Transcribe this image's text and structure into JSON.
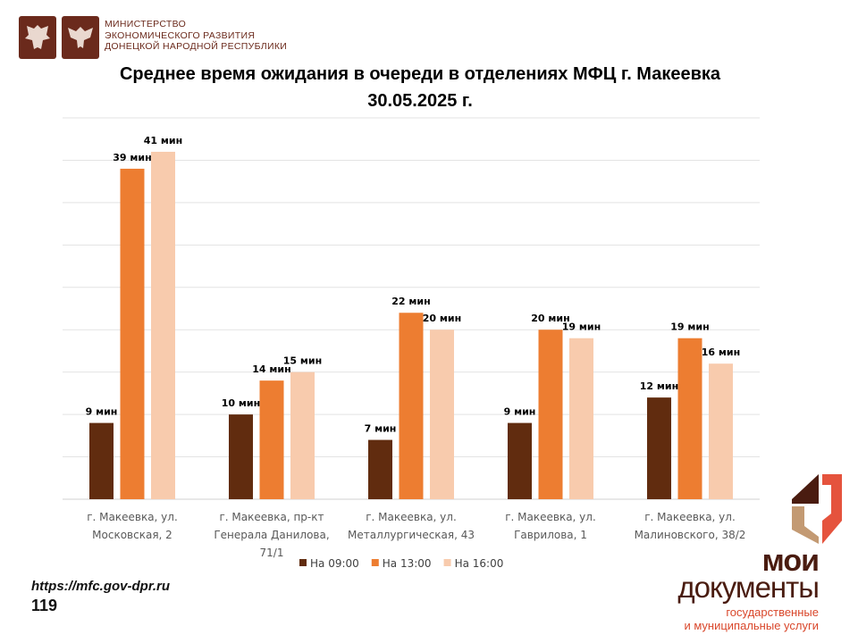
{
  "header": {
    "ministry_lines": [
      "МИНИСТЕРСТВО",
      "ЭКОНОМИЧЕСКОГО РАЗВИТИЯ",
      "ДОНЕЦКОЙ НАРОДНОЙ РЕСПУБЛИКИ"
    ]
  },
  "footer": {
    "url": "https://mfc.gov-dpr.ru",
    "page_number": "119",
    "brand_line1": "мои",
    "brand_line2": "документы",
    "brand_sub1": "государственные",
    "brand_sub2": "и муниципальные услуги"
  },
  "colors": {
    "s0": "#612c0f",
    "s1": "#ed7d31",
    "s2": "#f8cbad",
    "logo_red": "#e5533d",
    "logo_tan": "#c39a73"
  },
  "chart_data": {
    "type": "bar",
    "title": "Среднее время ожидания в очереди в отделениях МФЦ г. Макеевка",
    "subtitle": "30.05.2025 г.",
    "categories": [
      [
        "г. Макеевка, ул.",
        "Московская, 2"
      ],
      [
        "г. Макеевка, пр-кт",
        "Генерала Данилова,",
        "71/1"
      ],
      [
        "г. Макеевка, ул.",
        "Металлургическая, 43"
      ],
      [
        "г. Макеевка, ул.",
        "Гаврилова, 1"
      ],
      [
        "г. Макеевка, ул.",
        "Малиновского, 38/2"
      ]
    ],
    "series": [
      {
        "name": "На 09:00",
        "values": [
          9,
          10,
          7,
          9,
          12
        ],
        "labels": [
          "9 мин",
          "10 мин",
          "7 мин",
          "9 мин",
          "12 мин"
        ]
      },
      {
        "name": "На 13:00",
        "values": [
          39,
          14,
          22,
          20,
          19
        ],
        "labels": [
          "39 мин",
          "14 мин",
          "22 мин",
          "20 мин",
          "19 мин"
        ]
      },
      {
        "name": "На 16:00",
        "values": [
          41,
          15,
          20,
          19,
          16
        ],
        "labels": [
          "41 мин",
          "15 мин",
          "20 мин",
          "19 мин",
          "16 мин"
        ]
      }
    ],
    "ylim": [
      0,
      45
    ],
    "grid_step": 5,
    "grid": true,
    "y_axis_labels_shown": false,
    "legend": "bottom"
  }
}
